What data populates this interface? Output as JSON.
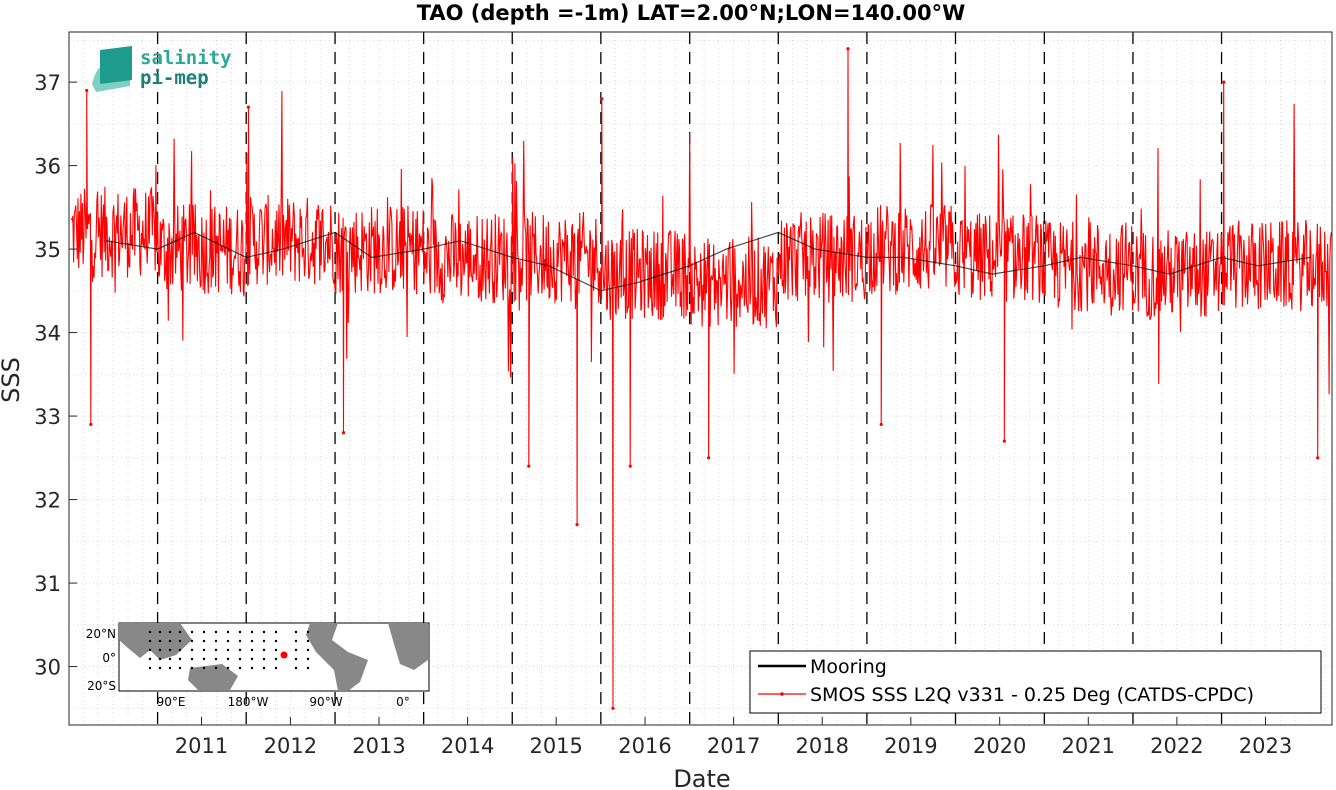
{
  "logo": {
    "line1": "salinity",
    "line2": "pi-mep",
    "color_top": "#2aa89a",
    "color_bottom": "#1d7f76"
  },
  "chart_data": {
    "type": "line",
    "title": "TAO (depth =-1m) LAT=2.00°N;LON=140.00°W",
    "xlabel": "Date",
    "ylabel": "SSS",
    "xlim": [
      "2010-01-01",
      "2024-03-31"
    ],
    "ylim": [
      29.3,
      37.6
    ],
    "x_tick_labels": [
      "2011",
      "2012",
      "2013",
      "2014",
      "2015",
      "2016",
      "2017",
      "2018",
      "2019",
      "2020",
      "2021",
      "2022",
      "2023"
    ],
    "y_tick_labels": [
      "30",
      "31",
      "32",
      "33",
      "34",
      "35",
      "36",
      "37"
    ],
    "year_separator_lines": "dashed black at each Jan 1",
    "grid": "dotted minor",
    "legend_placement": "bottom-right",
    "series": [
      {
        "name": "Mooring",
        "color": "#000000",
        "style": "line",
        "x": [
          "2010-06",
          "2011-01",
          "2011-06",
          "2012-01",
          "2012-06",
          "2013-01",
          "2013-06",
          "2014-01",
          "2014-06",
          "2015-01",
          "2015-06",
          "2016-01",
          "2016-06",
          "2017-01",
          "2017-06",
          "2018-01",
          "2018-06",
          "2019-01",
          "2019-06",
          "2020-01",
          "2020-06",
          "2021-01",
          "2021-06",
          "2022-01",
          "2022-06",
          "2023-01",
          "2023-06",
          "2024-01"
        ],
        "values": [
          35.1,
          35.0,
          35.2,
          34.9,
          35.0,
          35.2,
          34.9,
          35.0,
          35.1,
          34.9,
          34.8,
          34.5,
          34.6,
          34.8,
          35.0,
          35.2,
          35.0,
          34.9,
          34.9,
          34.8,
          34.7,
          34.8,
          34.9,
          34.8,
          34.7,
          34.9,
          34.8,
          34.9
        ]
      },
      {
        "name": "SMOS SSS L2Q v331 - 0.25 Deg (CATDS-CPDC)",
        "color": "#ff0000",
        "style": "line-with-dots",
        "mean_level": [
          35.2,
          35.0,
          35.1,
          35.0,
          34.9,
          34.9,
          34.7,
          34.6,
          34.9,
          35.0,
          34.9,
          34.8,
          34.7,
          34.8,
          34.8
        ],
        "noise_amplitude_sss": 0.55,
        "extremes": [
          {
            "x": "2010-03-15",
            "value": 36.9
          },
          {
            "x": "2010-04-01",
            "value": 32.9
          },
          {
            "x": "2012-01-10",
            "value": 36.7
          },
          {
            "x": "2013-02-05",
            "value": 32.8
          },
          {
            "x": "2015-03-10",
            "value": 32.4
          },
          {
            "x": "2015-09-25",
            "value": 31.7
          },
          {
            "x": "2016-01-05",
            "value": 36.8
          },
          {
            "x": "2016-02-20",
            "value": 29.5
          },
          {
            "x": "2016-05-01",
            "value": 32.4
          },
          {
            "x": "2017-03-20",
            "value": 32.5
          },
          {
            "x": "2018-10-15",
            "value": 37.4
          },
          {
            "x": "2019-03-01",
            "value": 32.9
          },
          {
            "x": "2020-07-20",
            "value": 32.7
          },
          {
            "x": "2023-01-10",
            "value": 37.0
          },
          {
            "x": "2024-02-01",
            "value": 32.5
          }
        ]
      }
    ]
  },
  "inset_map": {
    "lat_labels": [
      "20°N",
      "0°",
      "20°S"
    ],
    "lon_labels": [
      "90°E",
      "180°W",
      "90°W",
      "0°"
    ],
    "marker_color": "#ff0000"
  }
}
